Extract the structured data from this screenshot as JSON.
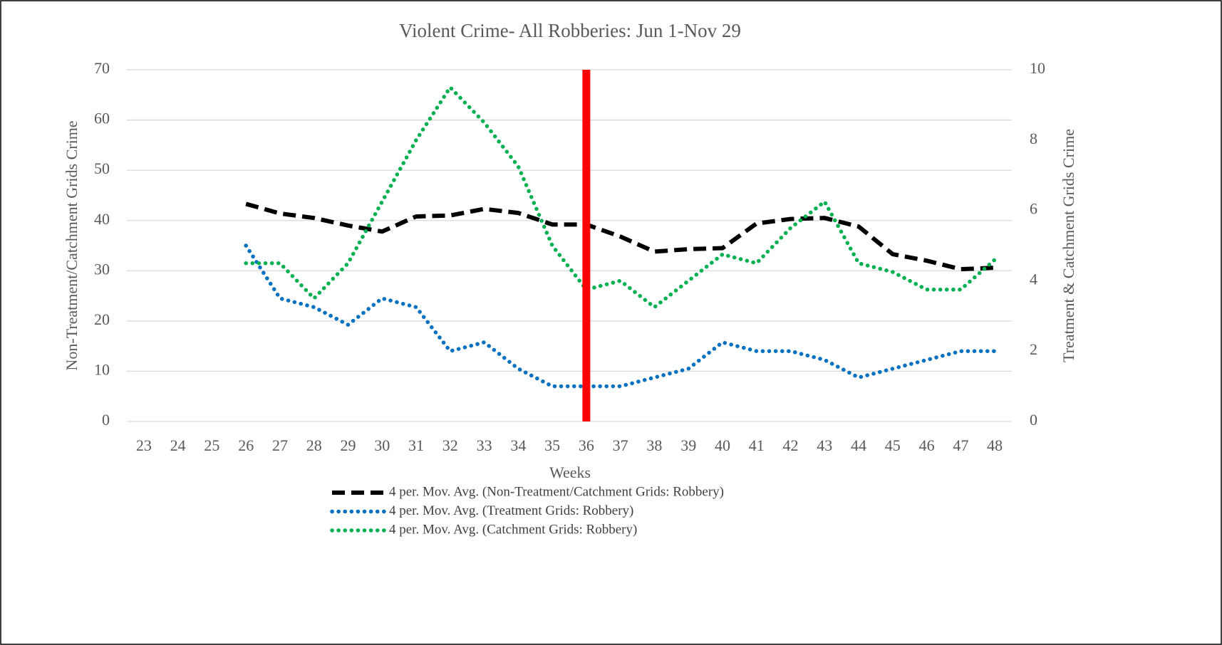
{
  "chart_data": {
    "type": "line",
    "title": "Violent Crime- All Robberies: Jun 1-Nov 29",
    "x_label": "Weeks",
    "y_label": "Non-Treatment/Catchment  Grids Crime",
    "y2_label": "Treatment  &  Catchment  Grids Crime",
    "categories": [
      "23",
      "24",
      "25",
      "26",
      "27",
      "28",
      "29",
      "30",
      "31",
      "32",
      "33",
      "34",
      "35",
      "36",
      "37",
      "38",
      "39",
      "40",
      "41",
      "42",
      "43",
      "44",
      "45",
      "46",
      "47",
      "48"
    ],
    "series": [
      {
        "name": "4 per. Mov. Avg. (Non-Treatment/Catchment Grids: Robbery)",
        "color": "#000000",
        "dash": "dashed",
        "axis": "y",
        "values": [
          null,
          null,
          null,
          43.3,
          41.4,
          40.5,
          39,
          37.8,
          40.8,
          41,
          42.3,
          41.5,
          39.2,
          39.2,
          36.8,
          33.8,
          34.3,
          34.5,
          39.4,
          40.3,
          40.5,
          38.8,
          33.3,
          32,
          30.3,
          30.6
        ]
      },
      {
        "name": "4 per. Mov. Avg. (Treatment Grids: Robbery)",
        "color": "#0070c0",
        "dash": "dotted",
        "axis": "y2",
        "values": [
          null,
          null,
          null,
          5,
          3.5,
          3.25,
          2.75,
          3.5,
          3.25,
          2,
          2.25,
          1.5,
          1,
          1,
          1,
          1.25,
          1.5,
          2.25,
          2,
          2,
          1.75,
          1.25,
          1.5,
          1.75,
          2,
          2
        ]
      },
      {
        "name": "4 per. Mov. Avg. (Catchment Grids: Robbery)",
        "color": "#00b050",
        "dash": "dotted",
        "axis": "y2",
        "values": [
          null,
          null,
          null,
          4.5,
          4.5,
          3.5,
          4.5,
          6.25,
          8,
          9.5,
          8.5,
          7.25,
          5,
          3.75,
          4,
          3.25,
          4,
          4.75,
          4.5,
          5.5,
          6.25,
          4.5,
          4.25,
          3.75,
          3.75,
          4.6
        ]
      }
    ],
    "ylim": [
      0,
      70
    ],
    "yticks": [
      0,
      10,
      20,
      30,
      40,
      50,
      60,
      70
    ],
    "y2lim": [
      0,
      10
    ],
    "y2ticks": [
      0,
      2,
      4,
      6,
      8,
      10
    ],
    "grid": true,
    "vline": {
      "category": "36",
      "color": "#ff0000"
    },
    "legend": "bottom"
  }
}
